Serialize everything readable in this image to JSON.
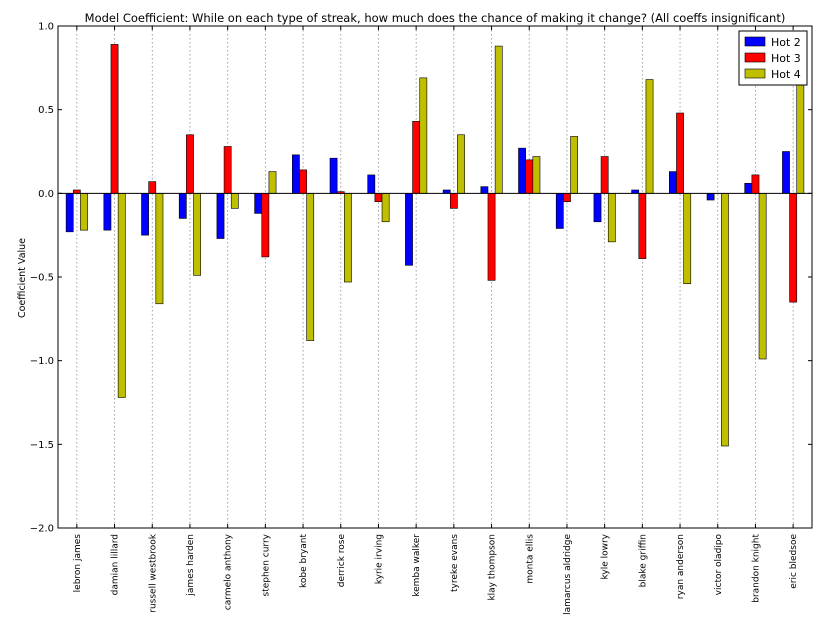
{
  "chart_data": {
    "type": "bar",
    "title": "Model Coefficient: While on each type of streak, how much does the chance of making it change? (All coeffs insignificant)",
    "ylabel": "Coefficient Value",
    "xlabel": "",
    "ylim": [
      -2.0,
      1.0
    ],
    "yticks": [
      1.0,
      0.5,
      0.0,
      -0.5,
      -1.0,
      -1.5,
      -2.0
    ],
    "ytick_labels": [
      "1.0",
      "0.5",
      "0.0",
      "−0.5",
      "−1.0",
      "−1.5",
      "−2.0"
    ],
    "grid": "x-dotted",
    "legend_position": "top-right",
    "categories": [
      "lebron james",
      "damian lillard",
      "russell westbrook",
      "james harden",
      "carmelo anthony",
      "stephen curry",
      "kobe bryant",
      "derrick rose",
      "kyrie irving",
      "kemba walker",
      "tyreke evans",
      "klay thompson",
      "monta ellis",
      "lamarcus aldridge",
      "kyle lowry",
      "blake griffin",
      "ryan anderson",
      "victor oladipo",
      "brandon knight",
      "eric bledsoe"
    ],
    "series": [
      {
        "name": "Hot 2",
        "color": "#0000ff",
        "values": [
          -0.23,
          -0.22,
          -0.25,
          -0.15,
          -0.27,
          -0.12,
          0.23,
          0.21,
          0.11,
          -0.43,
          0.02,
          0.04,
          0.27,
          -0.21,
          -0.17,
          0.02,
          0.13,
          -0.04,
          0.06,
          0.25
        ]
      },
      {
        "name": "Hot 3",
        "color": "#ff0000",
        "values": [
          0.02,
          0.89,
          0.07,
          0.35,
          0.28,
          -0.38,
          0.14,
          0.01,
          -0.05,
          0.43,
          -0.09,
          -0.52,
          0.2,
          -0.05,
          0.22,
          -0.39,
          0.48,
          0.0,
          0.11,
          -0.65
        ]
      },
      {
        "name": "Hot 4",
        "color": "#bfbf00",
        "values": [
          -0.22,
          -1.22,
          -0.66,
          -0.49,
          -0.09,
          0.13,
          -0.88,
          -0.53,
          -0.17,
          0.69,
          0.35,
          0.88,
          0.22,
          0.34,
          -0.29,
          0.68,
          -0.54,
          -1.51,
          -0.99,
          0.85
        ]
      }
    ]
  }
}
